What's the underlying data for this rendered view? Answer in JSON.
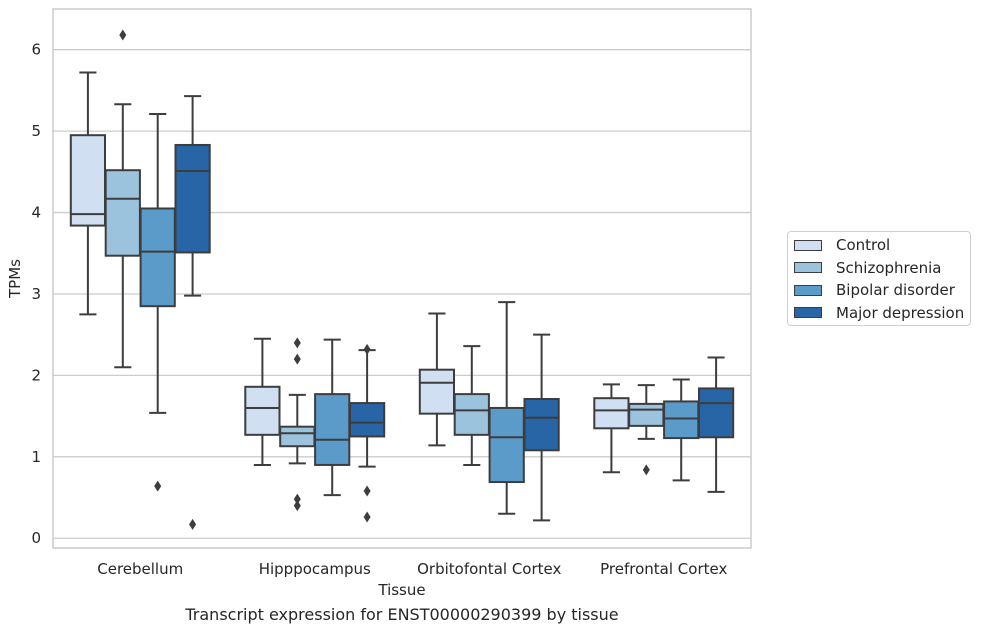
{
  "chart_data": {
    "type": "box",
    "title": "",
    "xlabel": "Tissue",
    "ylabel": "TPMs",
    "caption": "Transcript expression for ENST00000290399 by tissue",
    "ylim": [
      -0.12,
      6.5
    ],
    "yticks": [
      "0",
      "1",
      "2",
      "3",
      "4",
      "5",
      "6"
    ],
    "grid": "horizontal",
    "legend_position": "right",
    "categories": [
      "Cerebellum",
      "Hipppocampus",
      "Orbitofontal Cortex",
      "Prefrontal Cortex"
    ],
    "series": [
      {
        "name": "Control",
        "color": "#d0e0f2",
        "boxes": [
          {
            "whisker_low": 2.75,
            "q1": 3.84,
            "median": 3.98,
            "q3": 4.95,
            "whisker_high": 5.72,
            "outliers": []
          },
          {
            "whisker_low": 0.9,
            "q1": 1.27,
            "median": 1.6,
            "q3": 1.86,
            "whisker_high": 2.45,
            "outliers": []
          },
          {
            "whisker_low": 1.14,
            "q1": 1.53,
            "median": 1.91,
            "q3": 2.07,
            "whisker_high": 2.76,
            "outliers": []
          },
          {
            "whisker_low": 0.81,
            "q1": 1.35,
            "median": 1.57,
            "q3": 1.72,
            "whisker_high": 1.89,
            "outliers": []
          }
        ]
      },
      {
        "name": "Schizophrenia",
        "color": "#9cc3de",
        "boxes": [
          {
            "whisker_low": 2.1,
            "q1": 3.47,
            "median": 4.17,
            "q3": 4.52,
            "whisker_high": 5.33,
            "outliers": [
              6.18
            ]
          },
          {
            "whisker_low": 0.92,
            "q1": 1.13,
            "median": 1.29,
            "q3": 1.37,
            "whisker_high": 1.76,
            "outliers": [
              0.48,
              0.4,
              2.2,
              2.4
            ]
          },
          {
            "whisker_low": 0.9,
            "q1": 1.27,
            "median": 1.57,
            "q3": 1.77,
            "whisker_high": 2.36,
            "outliers": []
          },
          {
            "whisker_low": 1.22,
            "q1": 1.38,
            "median": 1.58,
            "q3": 1.65,
            "whisker_high": 1.88,
            "outliers": [
              0.84
            ]
          }
        ]
      },
      {
        "name": "Bipolar disorder",
        "color": "#5a9bc9",
        "boxes": [
          {
            "whisker_low": 1.54,
            "q1": 2.85,
            "median": 3.52,
            "q3": 4.05,
            "whisker_high": 5.21,
            "outliers": [
              0.64
            ]
          },
          {
            "whisker_low": 0.53,
            "q1": 0.9,
            "median": 1.21,
            "q3": 1.77,
            "whisker_high": 2.44,
            "outliers": []
          },
          {
            "whisker_low": 0.3,
            "q1": 0.69,
            "median": 1.24,
            "q3": 1.6,
            "whisker_high": 2.9,
            "outliers": []
          },
          {
            "whisker_low": 0.71,
            "q1": 1.23,
            "median": 1.47,
            "q3": 1.68,
            "whisker_high": 1.95,
            "outliers": []
          }
        ]
      },
      {
        "name": "Major depression",
        "color": "#2865a7",
        "boxes": [
          {
            "whisker_low": 2.98,
            "q1": 3.51,
            "median": 4.51,
            "q3": 4.83,
            "whisker_high": 5.43,
            "outliers": [
              0.17
            ]
          },
          {
            "whisker_low": 0.88,
            "q1": 1.25,
            "median": 1.42,
            "q3": 1.66,
            "whisker_high": 2.31,
            "outliers": [
              0.26,
              0.58,
              2.32
            ]
          },
          {
            "whisker_low": 0.22,
            "q1": 1.08,
            "median": 1.48,
            "q3": 1.71,
            "whisker_high": 2.5,
            "outliers": []
          },
          {
            "whisker_low": 0.57,
            "q1": 1.24,
            "median": 1.66,
            "q3": 1.84,
            "whisker_high": 2.22,
            "outliers": []
          }
        ]
      }
    ]
  }
}
